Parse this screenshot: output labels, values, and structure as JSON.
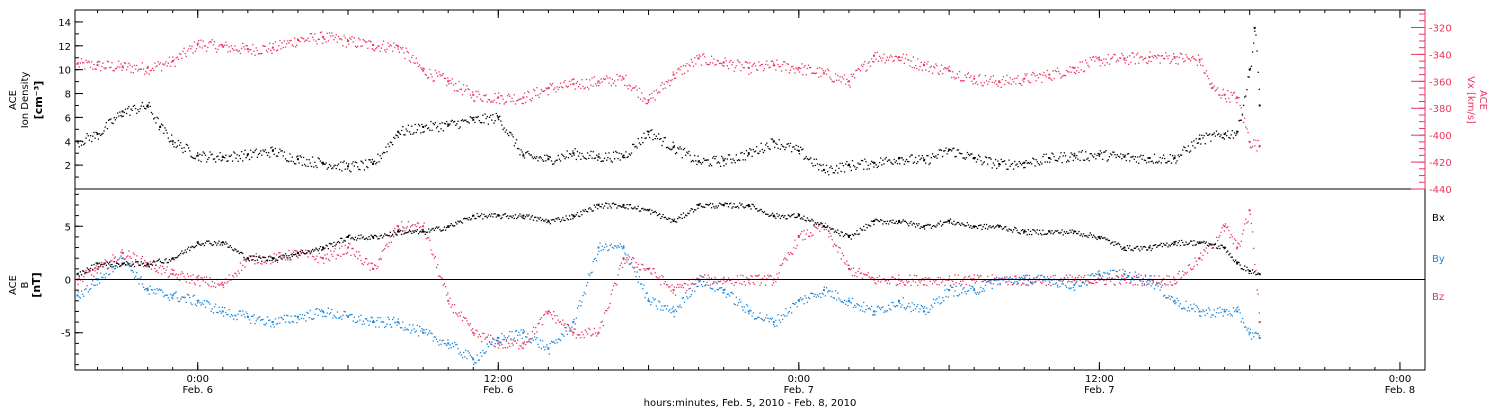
{
  "colors": {
    "black": "#000000",
    "pink": "#e8355f",
    "blue": "#1a86d9",
    "axis": "#000000"
  },
  "x_axis": {
    "title": "hours:minutes, Feb.  5, 2010 - Feb.  8, 2010",
    "ticks": [
      {
        "time": "0:00",
        "date": "Feb. 6",
        "h": 24
      },
      {
        "time": "12:00",
        "date": "Feb. 6",
        "h": 36
      },
      {
        "time": "0:00",
        "date": "Feb. 7",
        "h": 48
      },
      {
        "time": "12:00",
        "date": "Feb. 7",
        "h": 60
      },
      {
        "time": "0:00",
        "date": "Feb. 8",
        "h": 72
      }
    ]
  },
  "chart_data": [
    {
      "type": "scatter",
      "title": "",
      "xlabel": "hours:minutes, Feb.  5, 2010 - Feb.  8, 2010",
      "x_unit": "hours since 2010-02-05 00:00",
      "xlim": [
        19.1,
        73.0
      ],
      "left_axis": {
        "label_lines": [
          "ACE",
          "Ion Density",
          "[cm⁻³]"
        ],
        "ylim": [
          0,
          15
        ],
        "ticks": [
          2,
          4,
          6,
          8,
          10,
          12,
          14
        ]
      },
      "right_axis": {
        "label_lines": [
          "ACE",
          "Vx [km/s]"
        ],
        "ylim": [
          -440,
          -307
        ],
        "ticks": [
          -320,
          -340,
          -360,
          -380,
          -400,
          -420,
          -440
        ]
      },
      "series": [
        {
          "name": "Ion Density",
          "axis": "left",
          "color": "black",
          "x": [
            19.2,
            20,
            21,
            22,
            22.5,
            23,
            24,
            25,
            26,
            27,
            28,
            29,
            30,
            31,
            32,
            33,
            34,
            35,
            36,
            37,
            38,
            39,
            40,
            41,
            42,
            43,
            44,
            45,
            46,
            47,
            48,
            49,
            50,
            51,
            52,
            53,
            54,
            55,
            56,
            57,
            58,
            59,
            60,
            61,
            62,
            63,
            64,
            65,
            65.5,
            66,
            66.2,
            66.4
          ],
          "y": [
            4,
            4.6,
            6.5,
            7,
            5.2,
            4,
            2.8,
            2.7,
            2.9,
            3.2,
            2.5,
            2.2,
            1.9,
            2.1,
            4.8,
            5.2,
            5.4,
            5.8,
            6,
            2.8,
            2.5,
            3,
            2.7,
            2.8,
            4.8,
            3.5,
            2.3,
            2.4,
            3,
            4,
            3.2,
            1.6,
            2,
            2.2,
            2.6,
            2.4,
            3.3,
            2.6,
            2.1,
            2.2,
            2.6,
            2.8,
            2.9,
            2.7,
            2.6,
            2.6,
            4.2,
            4.6,
            4.8,
            10,
            13.5,
            7
          ]
        },
        {
          "name": "Vx",
          "axis": "right",
          "color": "pink",
          "x": [
            19.2,
            20,
            21,
            22,
            23,
            24,
            25,
            26,
            27,
            28,
            29,
            30,
            31,
            32,
            33,
            34,
            35,
            36,
            37,
            38,
            39,
            40,
            41,
            42,
            43,
            44,
            45,
            46,
            47,
            48,
            49,
            50,
            51,
            52,
            53,
            54,
            55,
            56,
            57,
            58,
            59,
            60,
            61,
            62,
            63,
            64,
            64.5,
            65,
            65.5,
            66,
            66.4
          ],
          "y": [
            -347,
            -348,
            -349,
            -350,
            -345,
            -332,
            -334,
            -336,
            -335,
            -329,
            -327,
            -330,
            -333,
            -334,
            -352,
            -360,
            -370,
            -372,
            -372,
            -365,
            -362,
            -360,
            -358,
            -374,
            -355,
            -343,
            -346,
            -350,
            -348,
            -350,
            -354,
            -360,
            -341,
            -342,
            -348,
            -352,
            -358,
            -360,
            -358,
            -355,
            -350,
            -344,
            -343,
            -342,
            -342,
            -344,
            -365,
            -370,
            -372,
            -405,
            -408
          ]
        }
      ]
    },
    {
      "type": "scatter",
      "title": "",
      "xlabel": "hours:minutes, Feb.  5, 2010 - Feb.  8, 2010",
      "x_unit": "hours since 2010-02-05 00:00",
      "xlim": [
        19.1,
        73.0
      ],
      "ylabel_lines": [
        "ACE",
        "B",
        "[nT]"
      ],
      "ylim": [
        -8.5,
        8.5
      ],
      "ticks": [
        -5,
        0,
        5
      ],
      "zero_line": true,
      "series": [
        {
          "name": "Bx",
          "color": "black",
          "x": [
            19.2,
            20,
            21,
            22,
            23,
            24,
            25,
            26,
            27,
            28,
            29,
            30,
            31,
            32,
            33,
            34,
            35,
            36,
            37,
            38,
            39,
            40,
            41,
            42,
            43,
            44,
            45,
            46,
            47,
            48,
            49,
            50,
            51,
            52,
            53,
            54,
            55,
            56,
            57,
            58,
            59,
            60,
            61,
            62,
            63,
            64,
            65,
            65.5,
            66,
            66.4
          ],
          "y": [
            0.5,
            1.5,
            1.5,
            1.5,
            2,
            3.5,
            3.5,
            2,
            2,
            2.5,
            3,
            4,
            4,
            4.5,
            4.5,
            5,
            6,
            6,
            6,
            5.5,
            6,
            7,
            7,
            6.5,
            5.5,
            7,
            7,
            7,
            6,
            6,
            5,
            4,
            5.5,
            5.5,
            5,
            5.5,
            5,
            5,
            4.5,
            4.5,
            4.5,
            4,
            3,
            3,
            3.5,
            3.5,
            3,
            1.5,
            0.8,
            0.5
          ]
        },
        {
          "name": "By",
          "color": "blue",
          "x": [
            19.2,
            20,
            21,
            22,
            23,
            24,
            25,
            26,
            27,
            28,
            29,
            30,
            31,
            32,
            33,
            34,
            35,
            36,
            37,
            38,
            39,
            40,
            41,
            42,
            43,
            44,
            45,
            46,
            47,
            48,
            49,
            50,
            51,
            52,
            53,
            54,
            55,
            56,
            57,
            58,
            59,
            60,
            61,
            62,
            63,
            64,
            65,
            65.5,
            66,
            66.4
          ],
          "y": [
            -1.5,
            0,
            2,
            -1,
            -1.5,
            -2,
            -3,
            -3.5,
            -4,
            -3.5,
            -3,
            -3.5,
            -4,
            -4,
            -5,
            -6,
            -7.5,
            -5.5,
            -5,
            -6.5,
            -4,
            3,
            3,
            -2,
            -3,
            0,
            -1,
            -3,
            -4,
            -2,
            -1,
            -2,
            -3,
            -2,
            -3,
            -1,
            -1,
            0,
            0,
            0,
            -0.5,
            0.5,
            0.5,
            0,
            -2,
            -3,
            -3,
            -3,
            -5,
            -5.5
          ]
        },
        {
          "name": "Bz",
          "color": "pink",
          "x": [
            19.2,
            20,
            21,
            22,
            23,
            24,
            25,
            26,
            27,
            28,
            29,
            30,
            31,
            32,
            33,
            34,
            35,
            36,
            37,
            38,
            39,
            40,
            41,
            42,
            43,
            44,
            45,
            46,
            47,
            48,
            49,
            50,
            51,
            52,
            53,
            54,
            55,
            56,
            57,
            58,
            59,
            60,
            61,
            62,
            63,
            64,
            65,
            65.5,
            66,
            66.4
          ],
          "y": [
            0,
            1,
            2.5,
            1.5,
            0.5,
            0,
            -0.5,
            2,
            2,
            2.5,
            2,
            3,
            1,
            5,
            5,
            -2,
            -5,
            -6,
            -6,
            -3,
            -5,
            -5,
            2,
            1,
            -1,
            0,
            0,
            0,
            0,
            4,
            5,
            1,
            0,
            0,
            0,
            0,
            0,
            0,
            0,
            0,
            0,
            0,
            0,
            0,
            0,
            2,
            5,
            3,
            6.5,
            -4
          ]
        }
      ],
      "legend": [
        "Bx",
        "By",
        "Bz"
      ]
    }
  ]
}
